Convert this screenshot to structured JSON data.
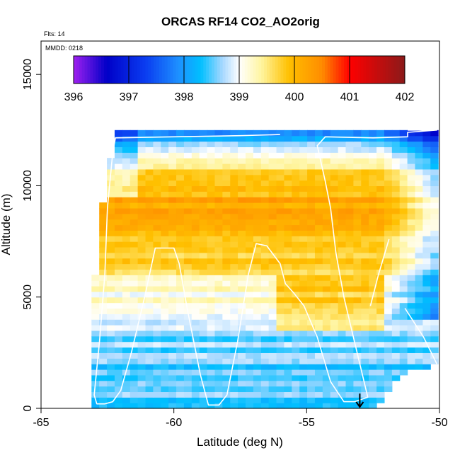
{
  "chart_data": {
    "type": "heatmap",
    "title": "ORCAS RF14 CO2_AO2orig",
    "subtitle": "Flts: 14",
    "annotation": "MMDD: 0218",
    "xlabel": "Latitude (deg N)",
    "ylabel": "Altitude (m)",
    "xlim": [
      -65,
      -50
    ],
    "ylim": [
      0,
      16500
    ],
    "x_ticks": [
      -65,
      -60,
      -55,
      -50
    ],
    "x_tick_labels": [
      "-65",
      "-60",
      "-55",
      "-50"
    ],
    "y_ticks": [
      0,
      5000,
      10000,
      15000
    ],
    "y_tick_labels": [
      "0",
      "5000",
      "10000",
      "15000"
    ],
    "colorbar": {
      "range": [
        396,
        402
      ],
      "ticks": [
        396,
        397,
        398,
        399,
        400,
        401,
        402
      ],
      "tick_labels": [
        "396",
        "397",
        "398",
        "399",
        "400",
        "401",
        "402"
      ],
      "stops": [
        {
          "v": 396.0,
          "c": "#a020f0"
        },
        {
          "v": 396.6,
          "c": "#0000c8"
        },
        {
          "v": 397.3,
          "c": "#0a3cf0"
        },
        {
          "v": 397.9,
          "c": "#1e90ff"
        },
        {
          "v": 398.3,
          "c": "#00bfff"
        },
        {
          "v": 398.7,
          "c": "#a8d8ff"
        },
        {
          "v": 399.0,
          "c": "#ffffff"
        },
        {
          "v": 399.4,
          "c": "#fff5a0"
        },
        {
          "v": 399.9,
          "c": "#ffc000"
        },
        {
          "v": 400.5,
          "c": "#ff8c00"
        },
        {
          "v": 401.0,
          "c": "#ff0000"
        },
        {
          "v": 402.0,
          "c": "#8b1a1a"
        }
      ]
    },
    "grid": {
      "lat_start": -63.1,
      "lat_end": -50.0,
      "lat_step": 0.29,
      "alt_start": 0,
      "alt_end": 12500,
      "alt_step": 250
    },
    "field_profile": [
      {
        "alt": 0,
        "v": 398.5
      },
      {
        "alt": 1500,
        "v": 398.45
      },
      {
        "alt": 3000,
        "v": 398.6
      },
      {
        "alt": 4500,
        "v": 398.9
      },
      {
        "alt": 5500,
        "v": 399.3
      },
      {
        "alt": 6500,
        "v": 399.7
      },
      {
        "alt": 7500,
        "v": 400.0
      },
      {
        "alt": 8500,
        "v": 400.2
      },
      {
        "alt": 9500,
        "v": 400.1
      },
      {
        "alt": 10500,
        "v": 399.8
      },
      {
        "alt": 11500,
        "v": 399.2
      },
      {
        "alt": 12500,
        "v": 398.4
      }
    ],
    "domain_edges": {
      "west": [
        {
          "alt": 0,
          "lat": -63.0
        },
        {
          "alt": 2500,
          "lat": -63.0
        },
        {
          "alt": 3800,
          "lat": -63.3
        },
        {
          "alt": 5500,
          "lat": -63.0
        },
        {
          "alt": 6500,
          "lat": -62.9
        },
        {
          "alt": 9000,
          "lat": -62.7
        },
        {
          "alt": 11000,
          "lat": -62.4
        },
        {
          "alt": 12400,
          "lat": -62.3
        }
      ],
      "east": [
        {
          "alt": 0,
          "lat": -52.3
        },
        {
          "alt": 1500,
          "lat": -51.5
        },
        {
          "alt": 2000,
          "lat": -50.0
        },
        {
          "alt": 12400,
          "lat": -50.0
        }
      ]
    },
    "flight_track": [
      {
        "lat": -51.2,
        "alt": 12500
      },
      {
        "lat": -50.1,
        "alt": 12500
      },
      {
        "lat": -51.2,
        "alt": 12400
      },
      {
        "lat": -51.2,
        "alt": 12200
      },
      {
        "lat": -52.5,
        "alt": 12150
      },
      {
        "lat": -54.3,
        "alt": 12200
      },
      {
        "lat": -54.6,
        "alt": 11800
      },
      {
        "lat": -54.3,
        "alt": 10200
      },
      {
        "lat": -54.1,
        "alt": 9000
      },
      {
        "lat": -53.9,
        "alt": 7000
      },
      {
        "lat": -53.6,
        "alt": 5000
      },
      {
        "lat": -53.3,
        "alt": 3500
      },
      {
        "lat": -53.0,
        "alt": 2000
      },
      {
        "lat": -52.7,
        "alt": 500
      },
      {
        "lat": -53.2,
        "alt": 300
      },
      {
        "lat": -53.6,
        "alt": 300
      },
      {
        "lat": -54.1,
        "alt": 1200
      },
      {
        "lat": -54.6,
        "alt": 3200
      },
      {
        "lat": -55.1,
        "alt": 4600
      },
      {
        "lat": -55.5,
        "alt": 5200
      },
      {
        "lat": -55.8,
        "alt": 5600
      },
      {
        "lat": -56.0,
        "alt": 6500
      },
      {
        "lat": -56.5,
        "alt": 7300
      },
      {
        "lat": -56.9,
        "alt": 7400
      },
      {
        "lat": -57.2,
        "alt": 6000
      },
      {
        "lat": -57.6,
        "alt": 3000
      },
      {
        "lat": -58.0,
        "alt": 600
      },
      {
        "lat": -58.3,
        "alt": 150
      },
      {
        "lat": -58.7,
        "alt": 150
      },
      {
        "lat": -59.0,
        "alt": 1500
      },
      {
        "lat": -59.5,
        "alt": 4500
      },
      {
        "lat": -59.8,
        "alt": 6500
      },
      {
        "lat": -60.0,
        "alt": 7200
      },
      {
        "lat": -60.7,
        "alt": 7200
      },
      {
        "lat": -61.1,
        "alt": 5000
      },
      {
        "lat": -61.6,
        "alt": 2500
      },
      {
        "lat": -62.0,
        "alt": 800
      },
      {
        "lat": -62.3,
        "alt": 300
      },
      {
        "lat": -62.6,
        "alt": 200
      },
      {
        "lat": -62.9,
        "alt": 200
      },
      {
        "lat": -63.0,
        "alt": 600
      },
      {
        "lat": -62.8,
        "alt": 3000
      },
      {
        "lat": -62.6,
        "alt": 6000
      },
      {
        "lat": -62.5,
        "alt": 9000
      },
      {
        "lat": -62.3,
        "alt": 11500
      },
      {
        "lat": -62.2,
        "alt": 12150
      },
      {
        "lat": -60.0,
        "alt": 12200
      },
      {
        "lat": -57.5,
        "alt": 12250
      },
      {
        "lat": -56.0,
        "alt": 12300
      }
    ],
    "flight_track_descent_east": [
      {
        "lat": -51.9,
        "alt": 7600
      },
      {
        "lat": -52.3,
        "alt": 6000
      },
      {
        "lat": -52.6,
        "alt": 4600
      }
    ],
    "flight_track_descent_far_east": [
      {
        "lat": -51.3,
        "alt": 4500
      },
      {
        "lat": -50.6,
        "alt": 3200
      },
      {
        "lat": -50.1,
        "alt": 2000
      }
    ],
    "marker_arrow": {
      "lat": -53.0,
      "alt_top": 600,
      "alt_bottom": 0
    },
    "colors": {
      "axis": "#000000",
      "track": "#ffffff"
    }
  }
}
